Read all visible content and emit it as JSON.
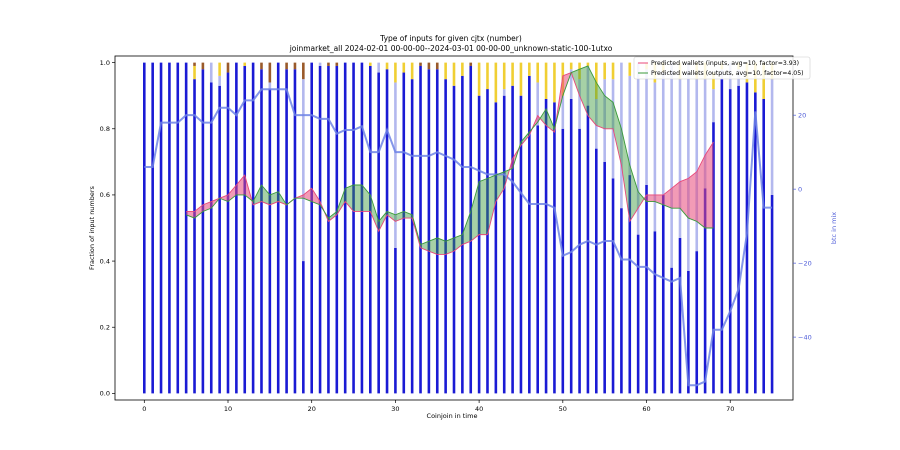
{
  "chart_data": {
    "type": "bar",
    "title": "Type of inputs for given cjtx (number)",
    "subtitle": "joinmarket_all 2024-02-01 00-00-00--2024-03-01 00-00-00_unknown-static-100-1utxo",
    "xlabel": "Coinjoin in time",
    "ylabel": "Fraction of input numbers",
    "y2label": "btc in mix",
    "xlim": [
      -3.5,
      77.5
    ],
    "ylim": [
      -0.02,
      1.02
    ],
    "y2lim": [
      -57,
      36
    ],
    "xticks": [
      0,
      10,
      20,
      30,
      40,
      50,
      60,
      70
    ],
    "yticks": [
      0.0,
      0.2,
      0.4,
      0.6,
      0.8,
      1.0
    ],
    "y2ticks": [
      -40,
      -20,
      0,
      20
    ],
    "bar_fraction_dark_blue": [
      1,
      1,
      1,
      1,
      1,
      1,
      0.95,
      0.98,
      0.94,
      0.93,
      0.97,
      1,
      0.99,
      1,
      0.98,
      0.92,
      1,
      0.98,
      0.98,
      0.4,
      1,
      0.99,
      0.99,
      0.99,
      1,
      1,
      1,
      0.99,
      0.97,
      0.98,
      0.44,
      0.97,
      0.95,
      0.99,
      0.98,
      0.98,
      0.95,
      0.93,
      0.96,
      0.99,
      0.9,
      0.92,
      0.88,
      0.9,
      0.93,
      0.9,
      0.96,
      0.81,
      0.89,
      0.88,
      0.8,
      0.89,
      0.8,
      0.87,
      0.74,
      0.7,
      0.65,
      0.56,
      0.66,
      0.48,
      0.63,
      0.49,
      0.6,
      0.38,
      0.47,
      0.37,
      0.43,
      0.62,
      0.82,
      0.95,
      0.92,
      0.93,
      0.94,
      0.91,
      0.89,
      0.6
    ],
    "bar_fraction_light_blue": [
      0,
      0,
      0,
      0,
      0,
      0,
      0,
      0,
      0.06,
      0.03,
      0,
      0,
      0,
      0,
      0,
      0.02,
      0,
      0,
      0,
      0.55,
      0,
      0.01,
      0,
      0,
      0,
      0,
      0,
      0,
      0.03,
      0,
      0.5,
      0,
      0,
      0,
      0,
      0,
      0,
      0,
      0,
      0,
      0,
      0,
      0,
      0.02,
      0,
      0,
      0,
      0.13,
      0,
      0,
      0.1,
      0.09,
      0.15,
      0.12,
      0.15,
      0.25,
      0.3,
      0.44,
      0.3,
      0.52,
      0.35,
      0.45,
      0.37,
      0.62,
      0.48,
      0.63,
      0.52,
      0.33,
      0.1,
      0.03,
      0.08,
      0.05,
      0,
      0,
      0,
      0.35
    ],
    "bar_fraction_gold": [
      0,
      0,
      0,
      0,
      0,
      0,
      0.04,
      0,
      0,
      0.04,
      0,
      0,
      0.01,
      0,
      0,
      0,
      0,
      0,
      0,
      0,
      0,
      0,
      0,
      0,
      0,
      0,
      0,
      0.01,
      0,
      0.02,
      0.06,
      0.03,
      0.05,
      0,
      0,
      0,
      0.05,
      0.07,
      0.04,
      0,
      0.1,
      0.08,
      0.12,
      0.08,
      0.07,
      0.1,
      0.04,
      0.06,
      0.11,
      0.12,
      0.1,
      0.02,
      0.05,
      0.01,
      0.11,
      0.05,
      0.05,
      0,
      0.04,
      0,
      0.02,
      0.06,
      0.03,
      0,
      0.05,
      0,
      0.05,
      0.05,
      0.05,
      0.02,
      0,
      0.02,
      0.06,
      0.09,
      0.11,
      0.05
    ],
    "bar_fraction_brown": [
      0,
      0,
      0,
      0,
      0,
      0,
      0.01,
      0.02,
      0,
      0,
      0.03,
      0,
      0,
      0,
      0.02,
      0.06,
      0,
      0.02,
      0.02,
      0.05,
      0,
      0,
      0.01,
      0.01,
      0,
      0,
      0,
      0,
      0,
      0,
      0,
      0,
      0,
      0.01,
      0.02,
      0.02,
      0,
      0,
      0,
      0.01,
      0,
      0,
      0,
      0,
      0,
      0,
      0,
      0,
      0,
      0,
      0,
      0,
      0,
      0,
      0,
      0,
      0,
      0,
      0,
      0,
      0,
      0,
      0,
      0,
      0,
      0,
      0,
      0,
      0,
      0,
      0,
      0,
      0,
      0,
      0,
      0
    ],
    "btc_in_mix": [
      6,
      6,
      18,
      18,
      18,
      20,
      20,
      18,
      18,
      22,
      22,
      20,
      24,
      24,
      27,
      27,
      27,
      27,
      20,
      20,
      20,
      19,
      19,
      15,
      16,
      16,
      17,
      10,
      10,
      16,
      10,
      10,
      9,
      9,
      9,
      10,
      9,
      8,
      6,
      6,
      5,
      4,
      4,
      4,
      2,
      -1,
      -4,
      -4,
      -4,
      -5,
      -18,
      -17,
      -15,
      -14,
      -15,
      -14,
      -14,
      -19,
      -19,
      -21,
      -21,
      -23,
      -24,
      -25,
      -24,
      -53,
      -53,
      -52,
      -38,
      -38,
      -33,
      -27,
      -12,
      21,
      -5,
      -5
    ],
    "series": [
      {
        "name": "Predicted wallets (inputs, avg=10, factor=3.93)",
        "color": "#e8487a",
        "x": [
          5,
          6,
          7,
          8,
          9,
          10,
          11,
          12,
          13,
          14,
          15,
          16,
          17,
          18,
          19,
          20,
          21,
          22,
          23,
          24,
          25,
          26,
          27,
          28,
          29,
          30,
          31,
          32,
          33,
          34,
          35,
          36,
          37,
          38,
          39,
          40,
          41,
          42,
          43,
          44,
          45,
          46,
          47,
          48,
          49,
          50,
          51,
          52,
          53,
          54,
          55,
          56,
          57,
          58,
          59,
          60,
          61,
          62,
          63,
          64,
          65,
          66,
          67,
          68
        ],
        "values": [
          0.55,
          0.55,
          0.57,
          0.58,
          0.59,
          0.6,
          0.63,
          0.66,
          0.57,
          0.58,
          0.57,
          0.58,
          0.57,
          0.59,
          0.6,
          0.62,
          0.58,
          0.52,
          0.54,
          0.58,
          0.55,
          0.55,
          0.55,
          0.49,
          0.54,
          0.52,
          0.53,
          0.53,
          0.44,
          0.43,
          0.42,
          0.42,
          0.43,
          0.45,
          0.46,
          0.48,
          0.48,
          0.58,
          0.62,
          0.71,
          0.75,
          0.78,
          0.84,
          0.81,
          0.79,
          0.96,
          0.97,
          0.9,
          0.84,
          0.81,
          0.8,
          0.8,
          0.69,
          0.52,
          0.56,
          0.6,
          0.6,
          0.6,
          0.62,
          0.64,
          0.65,
          0.67,
          0.72,
          0.76
        ]
      },
      {
        "name": "Predicted wallets (outputs, avg=10, factor=4.05)",
        "color": "#3a9a3a",
        "x": [
          5,
          6,
          7,
          8,
          9,
          10,
          11,
          12,
          13,
          14,
          15,
          16,
          17,
          18,
          19,
          20,
          21,
          22,
          23,
          24,
          25,
          26,
          27,
          28,
          29,
          30,
          31,
          32,
          33,
          34,
          35,
          36,
          37,
          38,
          39,
          40,
          41,
          42,
          43,
          44,
          45,
          46,
          47,
          48,
          49,
          50,
          51,
          52,
          53,
          54,
          55,
          56,
          57,
          58,
          59,
          60,
          61,
          62,
          63,
          64,
          65,
          66,
          67,
          68
        ],
        "values": [
          0.54,
          0.53,
          0.55,
          0.56,
          0.59,
          0.58,
          0.6,
          0.6,
          0.58,
          0.63,
          0.6,
          0.61,
          0.57,
          0.59,
          0.59,
          0.58,
          0.57,
          0.53,
          0.55,
          0.62,
          0.63,
          0.63,
          0.6,
          0.52,
          0.55,
          0.54,
          0.55,
          0.54,
          0.45,
          0.46,
          0.47,
          0.46,
          0.47,
          0.48,
          0.55,
          0.64,
          0.65,
          0.66,
          0.67,
          0.68,
          0.76,
          0.79,
          0.82,
          0.86,
          0.8,
          0.9,
          0.97,
          0.98,
          0.99,
          0.94,
          0.9,
          0.88,
          0.8,
          0.69,
          0.61,
          0.58,
          0.58,
          0.57,
          0.56,
          0.56,
          0.53,
          0.52,
          0.5,
          0.5
        ]
      }
    ],
    "bar_colors": {
      "dark_blue": "#1a1ad4",
      "light_blue": "#b3b8ee",
      "gold": "#f0cf33",
      "brown": "#9a5a2a"
    },
    "btc_line_color": "#6f84e6",
    "legend_position": "top-right",
    "grid": false
  }
}
